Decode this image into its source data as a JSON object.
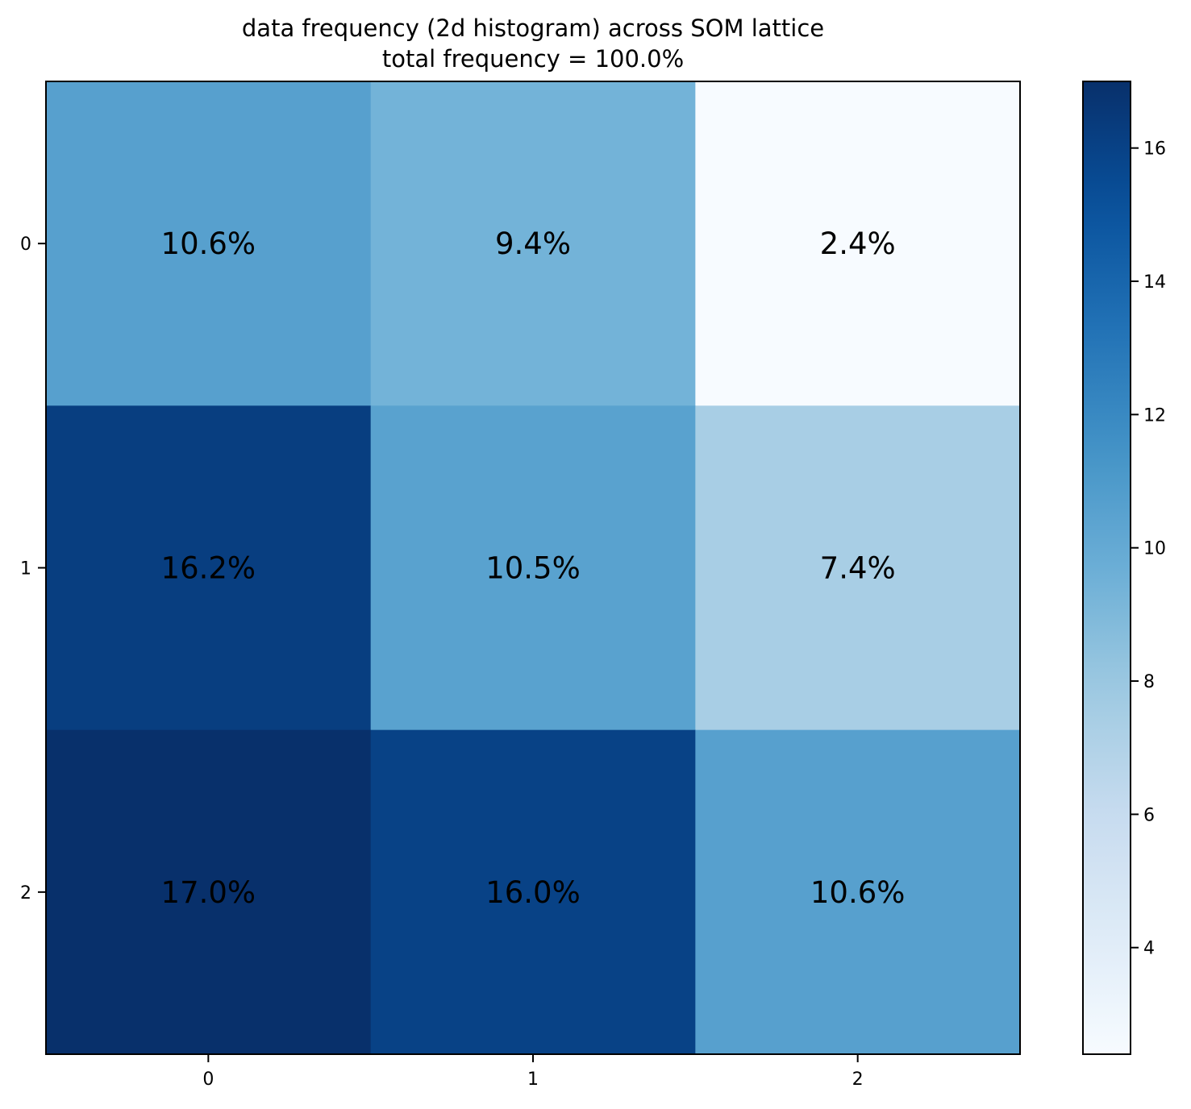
{
  "chart_data": {
    "type": "heatmap",
    "title": "data frequency (2d histogram) across SOM lattice",
    "subtitle": "total frequency = 100.0%",
    "x_ticks": [
      "0",
      "1",
      "2"
    ],
    "y_ticks": [
      "0",
      "1",
      "2"
    ],
    "values": [
      [
        10.6,
        9.4,
        2.4
      ],
      [
        16.2,
        10.5,
        7.4
      ],
      [
        17.0,
        16.0,
        10.6
      ]
    ],
    "cell_labels": [
      [
        "10.6%",
        "9.4%",
        "2.4%"
      ],
      [
        "16.2%",
        "10.5%",
        "7.4%"
      ],
      [
        "17.0%",
        "16.0%",
        "10.6%"
      ]
    ],
    "colormap": "Blues",
    "colorbar": {
      "range": [
        2.4,
        17.0
      ],
      "ticks": [
        4,
        6,
        8,
        10,
        12,
        14,
        16
      ],
      "tick_labels": [
        "4",
        "6",
        "8",
        "10",
        "12",
        "14",
        "16"
      ]
    }
  }
}
